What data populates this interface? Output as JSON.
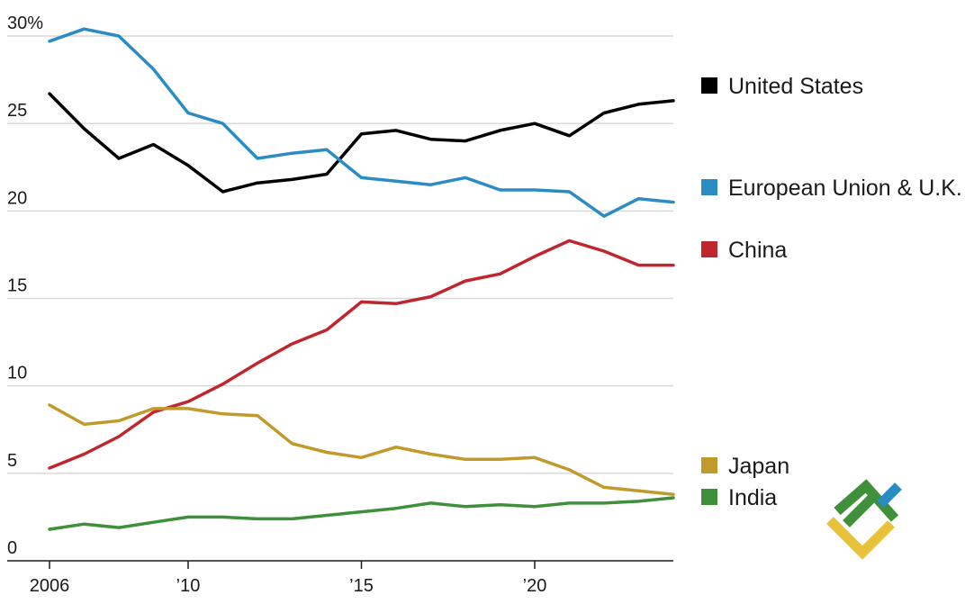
{
  "chart_data": {
    "type": "line",
    "x": [
      2006,
      2007,
      2008,
      2009,
      2010,
      2011,
      2012,
      2013,
      2014,
      2015,
      2016,
      2017,
      2018,
      2019,
      2020,
      2021,
      2022,
      2023,
      2024
    ],
    "xlim": [
      2006,
      2024
    ],
    "ylim": [
      0,
      30
    ],
    "y_ticks": [
      {
        "value": 30,
        "label": "30%"
      },
      {
        "value": 25,
        "label": "25"
      },
      {
        "value": 20,
        "label": "20"
      },
      {
        "value": 15,
        "label": "15"
      },
      {
        "value": 10,
        "label": "10"
      },
      {
        "value": 5,
        "label": "5"
      },
      {
        "value": 0,
        "label": "0"
      }
    ],
    "x_ticks": [
      {
        "value": 2006,
        "label": "2006"
      },
      {
        "value": 2010,
        "label": "’10"
      },
      {
        "value": 2015,
        "label": "’15"
      },
      {
        "value": 2020,
        "label": "’20"
      }
    ],
    "grid": true,
    "legend_position": "right",
    "series": [
      {
        "name": "United States",
        "color": "#000000",
        "values": [
          26.7,
          24.7,
          23.0,
          23.8,
          22.6,
          21.1,
          21.6,
          21.8,
          22.1,
          24.4,
          24.6,
          24.1,
          24.0,
          24.6,
          25.0,
          24.3,
          25.6,
          26.1,
          26.3
        ]
      },
      {
        "name": "European Union & U.K.",
        "color": "#2b8cc4",
        "values": [
          29.7,
          30.4,
          30.0,
          28.1,
          25.6,
          25.0,
          23.0,
          23.3,
          23.5,
          21.9,
          21.7,
          21.5,
          21.9,
          21.2,
          21.2,
          21.1,
          19.7,
          20.7,
          20.5
        ]
      },
      {
        "name": "China",
        "color": "#c0262d",
        "values": [
          5.3,
          6.1,
          7.1,
          8.5,
          9.1,
          10.1,
          11.3,
          12.4,
          13.2,
          14.8,
          14.7,
          15.1,
          16.0,
          16.4,
          17.4,
          18.3,
          17.7,
          16.9,
          16.9
        ]
      },
      {
        "name": "Japan",
        "color": "#c09a2a",
        "values": [
          8.9,
          7.8,
          8.0,
          8.7,
          8.7,
          8.4,
          8.3,
          6.7,
          6.2,
          5.9,
          6.5,
          6.1,
          5.8,
          5.8,
          5.9,
          5.2,
          4.2,
          4.0,
          3.8
        ]
      },
      {
        "name": "India",
        "color": "#3f8f3b",
        "values": [
          1.8,
          2.1,
          1.9,
          2.2,
          2.5,
          2.5,
          2.4,
          2.4,
          2.6,
          2.8,
          3.0,
          3.3,
          3.1,
          3.2,
          3.1,
          3.3,
          3.3,
          3.4,
          3.6
        ]
      }
    ]
  },
  "logo": {
    "name": "brand-logo",
    "colors": [
      "#3f8f3b",
      "#e8c23a",
      "#2b8cc4"
    ]
  }
}
